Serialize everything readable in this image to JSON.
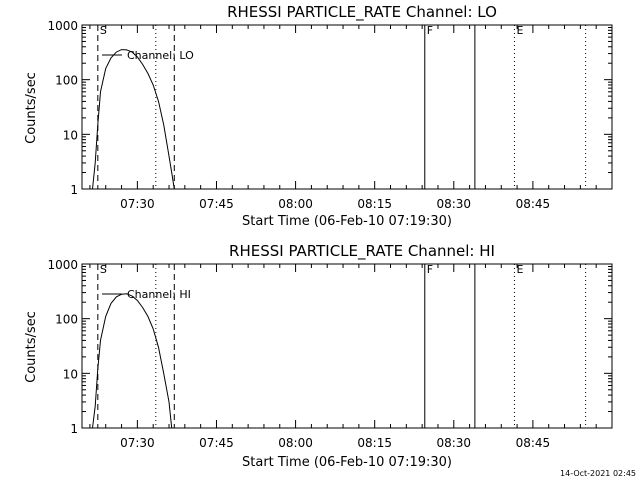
{
  "footer": {
    "timestamp": "14-Oct-2021 02:45"
  },
  "chart_data": [
    {
      "type": "line",
      "title": "RHESSI PARTICLE_RATE Channel: LO",
      "xlabel": "Start Time (06-Feb-10 07:19:30)",
      "ylabel": "Counts/sec",
      "y_scale": "log",
      "ylim": [
        1,
        1000
      ],
      "xlim": [
        "07:19:30",
        "09:00:00"
      ],
      "x_ticks": [
        "07:30",
        "07:45",
        "08:00",
        "08:15",
        "08:30",
        "08:45"
      ],
      "y_ticks": [
        "1",
        "10",
        "100",
        "1000"
      ],
      "legend": {
        "label": "Channel: LO",
        "placement": "top-left"
      },
      "markers": [
        {
          "label": "S",
          "time": "07:22:30",
          "style": "dashed"
        },
        {
          "label": "",
          "time": "07:33:30",
          "style": "dotted"
        },
        {
          "label": "",
          "time": "07:37:00",
          "style": "dashed"
        },
        {
          "label": "F",
          "time": "08:24:30",
          "style": "solid"
        },
        {
          "label": "",
          "time": "08:34:00",
          "style": "solid"
        },
        {
          "label": "E",
          "time": "08:41:30",
          "style": "dotted"
        },
        {
          "label": "",
          "time": "08:55:00",
          "style": "dotted"
        }
      ],
      "series": [
        {
          "x": [
            "07:21:30",
            "07:22:00",
            "07:22:30",
            "07:23:00",
            "07:24:00",
            "07:25:00",
            "07:26:00",
            "07:27:00",
            "07:28:00",
            "07:29:00",
            "07:30:00",
            "07:31:00",
            "07:32:00",
            "07:33:00",
            "07:34:00",
            "07:35:00",
            "07:36:00",
            "07:36:30",
            "07:37:00"
          ],
          "y": [
            1,
            3,
            15,
            60,
            160,
            250,
            320,
            355,
            350,
            320,
            260,
            190,
            130,
            80,
            40,
            15,
            4,
            2,
            1
          ]
        }
      ]
    },
    {
      "type": "line",
      "title": "RHESSI PARTICLE_RATE Channel: HI",
      "xlabel": "Start Time (06-Feb-10 07:19:30)",
      "ylabel": "Counts/sec",
      "y_scale": "log",
      "ylim": [
        1,
        1000
      ],
      "xlim": [
        "07:19:30",
        "09:00:00"
      ],
      "x_ticks": [
        "07:30",
        "07:45",
        "08:00",
        "08:15",
        "08:30",
        "08:45"
      ],
      "y_ticks": [
        "1",
        "10",
        "100",
        "1000"
      ],
      "legend": {
        "label": "Channel: HI",
        "placement": "top-left"
      },
      "markers": [
        {
          "label": "S",
          "time": "07:22:30",
          "style": "dashed"
        },
        {
          "label": "",
          "time": "07:33:30",
          "style": "dotted"
        },
        {
          "label": "",
          "time": "07:37:00",
          "style": "dashed"
        },
        {
          "label": "F",
          "time": "08:24:30",
          "style": "solid"
        },
        {
          "label": "",
          "time": "08:34:00",
          "style": "solid"
        },
        {
          "label": "E",
          "time": "08:41:30",
          "style": "dotted"
        },
        {
          "label": "",
          "time": "08:55:00",
          "style": "dotted"
        }
      ],
      "series": [
        {
          "x": [
            "07:21:30",
            "07:22:00",
            "07:22:30",
            "07:23:00",
            "07:24:00",
            "07:25:00",
            "07:26:00",
            "07:27:00",
            "07:28:00",
            "07:29:00",
            "07:30:00",
            "07:31:00",
            "07:32:00",
            "07:33:00",
            "07:34:00",
            "07:35:00",
            "07:36:00",
            "07:36:30"
          ],
          "y": [
            1,
            2.5,
            12,
            40,
            110,
            190,
            250,
            280,
            285,
            260,
            215,
            160,
            110,
            65,
            30,
            10,
            3,
            1
          ]
        }
      ]
    }
  ]
}
